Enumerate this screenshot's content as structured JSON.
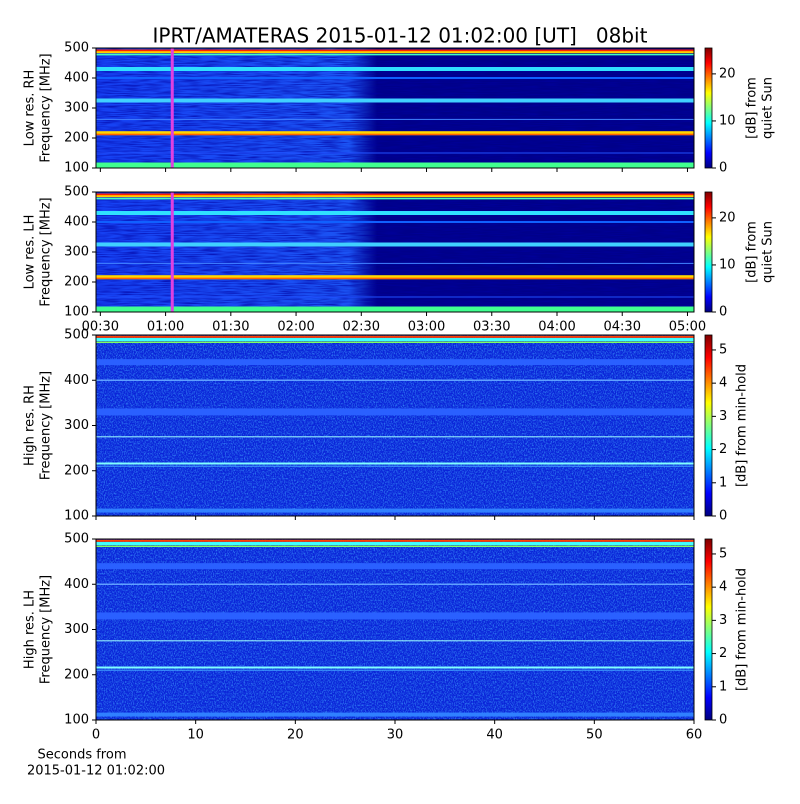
{
  "chart_data": [
    {
      "type": "heatmap",
      "title": "IPRT/AMATERAS 2015-01-12 01:02:00 [UT]   08bit",
      "ylabel": [
        "Low res. RH",
        "Frequency [MHz]"
      ],
      "ylim": [
        100,
        500
      ],
      "yticks": [
        100,
        200,
        300,
        400,
        500
      ],
      "xlim": [
        "00:28",
        "05:03"
      ],
      "xticks": [
        "00:30",
        "01:00",
        "01:30",
        "02:00",
        "02:30",
        "03:00",
        "03:30",
        "04:00",
        "04:30",
        "05:00"
      ],
      "show_xticklabels": false,
      "colormap": "jet",
      "colorbar": {
        "label": [
          "[dB] from",
          "quiet Sun"
        ],
        "lim": [
          0,
          25.5
        ],
        "ticks": [
          0,
          10,
          20
        ]
      }
    },
    {
      "type": "heatmap",
      "ylabel": [
        "Low res. LH",
        "Frequency [MHz]"
      ],
      "ylim": [
        100,
        500
      ],
      "yticks": [
        100,
        200,
        300,
        400,
        500
      ],
      "xlim": [
        "00:28",
        "05:03"
      ],
      "xticks": [
        "00:30",
        "01:00",
        "01:30",
        "02:00",
        "02:30",
        "03:00",
        "03:30",
        "04:00",
        "04:30",
        "05:00"
      ],
      "show_xticklabels": true,
      "colormap": "jet",
      "colorbar": {
        "label": [
          "[dB] from",
          "quiet Sun"
        ],
        "lim": [
          0,
          25.5
        ],
        "ticks": [
          0,
          10,
          20
        ]
      }
    },
    {
      "type": "heatmap",
      "ylabel": [
        "High res. RH",
        "Frequency [MHz]"
      ],
      "ylim": [
        100,
        500
      ],
      "yticks": [
        100,
        200,
        300,
        400,
        500
      ],
      "xlim": [
        0,
        60
      ],
      "xticks": [
        0,
        10,
        20,
        30,
        40,
        50,
        60
      ],
      "show_xticklabels": false,
      "colormap": "jet",
      "colorbar": {
        "label": [
          "[dB] from min-hold"
        ],
        "lim": [
          0,
          5.45
        ],
        "ticks": [
          0,
          1,
          2,
          3,
          4,
          5
        ]
      }
    },
    {
      "type": "heatmap",
      "ylabel": [
        "High res. LH",
        "Frequency [MHz]"
      ],
      "ylim": [
        100,
        500
      ],
      "yticks": [
        100,
        200,
        300,
        400,
        500
      ],
      "xlim": [
        0,
        60
      ],
      "xticks": [
        0,
        10,
        20,
        30,
        40,
        50,
        60
      ],
      "show_xticklabels": true,
      "xlabel": [
        "Seconds from",
        "2015-01-12 01:02:00"
      ],
      "colormap": "jet",
      "colorbar": {
        "label": [
          "[dB] from min-hold"
        ],
        "lim": [
          0,
          5.45
        ],
        "ticks": [
          0,
          1,
          2,
          3,
          4,
          5
        ]
      }
    }
  ]
}
